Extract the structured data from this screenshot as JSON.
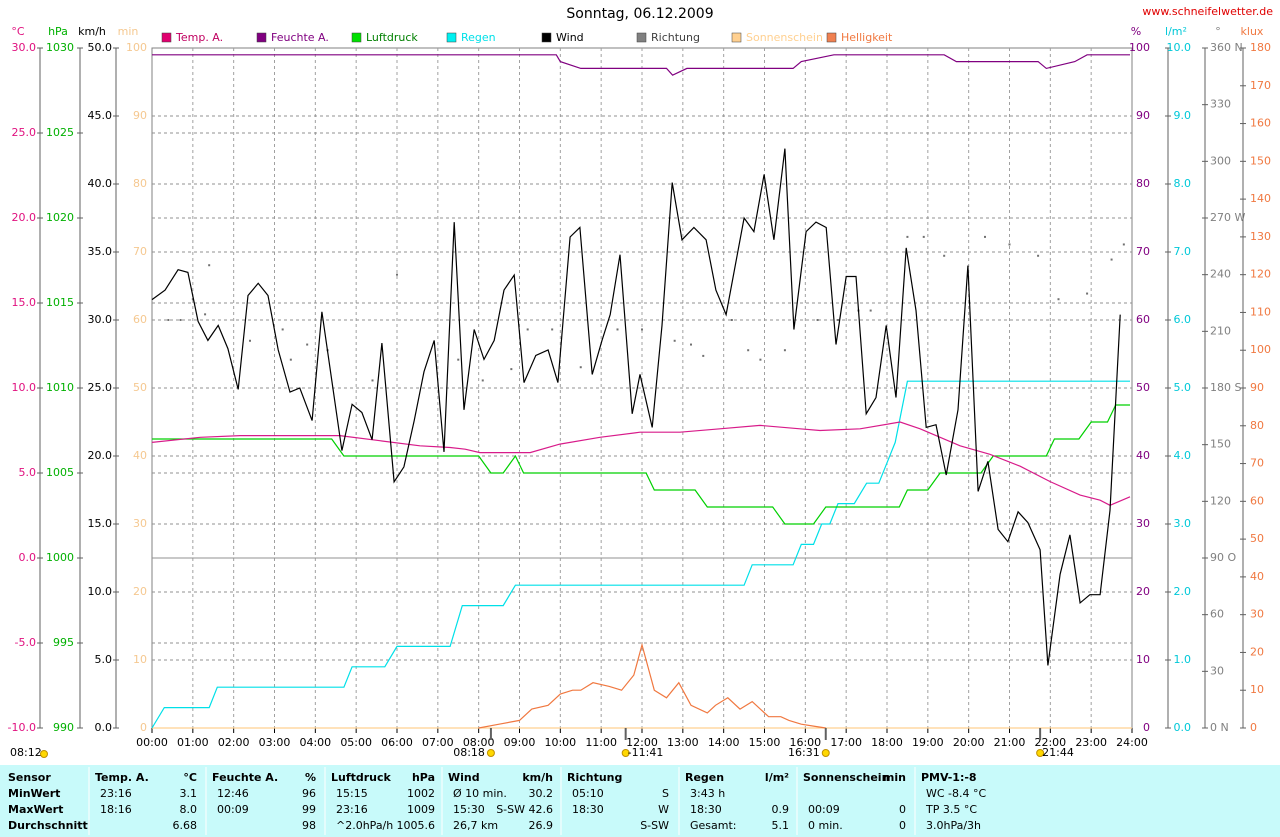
{
  "chart_data": {
    "type": "line",
    "title": "Sonntag, 06.12.2009",
    "source": "www.schneifelwetter.de",
    "xlim": [
      0,
      24
    ],
    "xticks": [
      {
        "value": 0,
        "label": "00:00"
      },
      {
        "value": 1,
        "label": "01:00"
      },
      {
        "value": 2,
        "label": "02:00"
      },
      {
        "value": 3,
        "label": "03:00"
      },
      {
        "value": 4,
        "label": "04:00"
      },
      {
        "value": 5,
        "label": "05:00"
      },
      {
        "value": 6,
        "label": "06:00"
      },
      {
        "value": 7,
        "label": "07:00"
      },
      {
        "value": 8,
        "label": "08:00"
      },
      {
        "value": 9,
        "label": "09:00"
      },
      {
        "value": 10,
        "label": "10:00"
      },
      {
        "value": 11,
        "label": "11:00"
      },
      {
        "value": 12,
        "label": "12:00"
      },
      {
        "value": 13,
        "label": "13:00"
      },
      {
        "value": 14,
        "label": "14:00"
      },
      {
        "value": 15,
        "label": "15:00"
      },
      {
        "value": 16,
        "label": "16:00"
      },
      {
        "value": 17,
        "label": "17:00"
      },
      {
        "value": 18,
        "label": "18:00"
      },
      {
        "value": 19,
        "label": "19:00"
      },
      {
        "value": 20,
        "label": "20:00"
      },
      {
        "value": 21,
        "label": "21:00"
      },
      {
        "value": 22,
        "label": "22:00"
      },
      {
        "value": 23,
        "label": "23:00"
      },
      {
        "value": 24,
        "label": "24:00"
      }
    ],
    "grid": true,
    "axes": {
      "temp": {
        "unit": "°C",
        "color": "#e0107f",
        "lim": [
          -10,
          30
        ],
        "grid": true,
        "zero_line": true,
        "ticks": [
          {
            "value": -10,
            "label": "-10.0"
          },
          {
            "value": -5,
            "label": "-5.0"
          },
          {
            "value": 0,
            "label": "0.0"
          },
          {
            "value": 5,
            "label": "5.0"
          },
          {
            "value": 10,
            "label": "10.0"
          },
          {
            "value": 15,
            "label": "15.0"
          },
          {
            "value": 20,
            "label": "20.0"
          },
          {
            "value": 25,
            "label": "25.0"
          },
          {
            "value": 30,
            "label": "30.0"
          }
        ]
      },
      "pressure": {
        "unit": "hPa",
        "color": "#00b000",
        "lim": [
          990,
          1030
        ],
        "ticks": [
          990,
          995,
          1000,
          1005,
          1010,
          1015,
          1020,
          1025,
          1030
        ]
      },
      "wind": {
        "unit": "km/h",
        "color": "#000000",
        "lim": [
          0,
          50
        ],
        "grid": true,
        "ticks": [
          {
            "value": 0,
            "label": "0.0"
          },
          {
            "value": 5,
            "label": "5.0"
          },
          {
            "value": 10,
            "label": "10.0"
          },
          {
            "value": 15,
            "label": "15.0"
          },
          {
            "value": 20,
            "label": "20.0"
          },
          {
            "value": 25,
            "label": "25.0"
          },
          {
            "value": 30,
            "label": "30.0"
          },
          {
            "value": 35,
            "label": "35.0"
          },
          {
            "value": 40,
            "label": "40.0"
          },
          {
            "value": 45,
            "label": "45.0"
          },
          {
            "value": 50,
            "label": "50.0"
          }
        ]
      },
      "sun": {
        "unit": "min",
        "color": "#f5c890",
        "lim": [
          0,
          100
        ],
        "ticks": [
          0,
          10,
          20,
          30,
          40,
          50,
          60,
          70,
          80,
          90,
          100
        ]
      },
      "humidity": {
        "unit": "%",
        "color": "#800080",
        "lim": [
          0,
          100
        ],
        "ticks": [
          0,
          10,
          20,
          30,
          40,
          50,
          60,
          70,
          80,
          90,
          100
        ]
      },
      "rain": {
        "unit": "l/m²",
        "color": "#00c8d8",
        "lim": [
          0,
          10
        ],
        "ticks": [
          {
            "value": 0,
            "label": "0.0"
          },
          {
            "value": 1,
            "label": "1.0"
          },
          {
            "value": 2,
            "label": "2.0"
          },
          {
            "value": 3,
            "label": "3.0"
          },
          {
            "value": 4,
            "label": "4.0"
          },
          {
            "value": 5,
            "label": "5.0"
          },
          {
            "value": 6,
            "label": "6.0"
          },
          {
            "value": 7,
            "label": "7.0"
          },
          {
            "value": 8,
            "label": "8.0"
          },
          {
            "value": 9,
            "label": "9.0"
          },
          {
            "value": 10,
            "label": "10.0"
          }
        ]
      },
      "direction": {
        "unit": "°",
        "color": "#808080",
        "lim": [
          0,
          360
        ],
        "ticks": [
          {
            "value": 0,
            "label": "0 N"
          },
          30,
          60,
          {
            "value": 90,
            "label": "90 O"
          },
          120,
          150,
          {
            "value": 180,
            "label": "180 S"
          },
          210,
          240,
          {
            "value": 270,
            "label": "270 W"
          },
          300,
          330,
          {
            "value": 360,
            "label": "360 N"
          }
        ]
      },
      "klux": {
        "unit": "klux",
        "color": "#f07840",
        "lim": [
          0,
          180
        ],
        "ticks": [
          0,
          10,
          20,
          30,
          40,
          50,
          60,
          70,
          80,
          90,
          100,
          110,
          120,
          130,
          140,
          150,
          160,
          170,
          180
        ]
      }
    },
    "series": [
      {
        "name": "Temp. A.",
        "color": "#d81b8a",
        "legend_color": "#e0006f",
        "axis": "temp",
        "kind": "line",
        "x": [
          0,
          1.18,
          2.16,
          4.11,
          4.6,
          5.58,
          6.56,
          7.3,
          7.67,
          8.03,
          8.52,
          9.26,
          9.99,
          10.97,
          11.95,
          12.93,
          13.91,
          14.89,
          15.87,
          16.36,
          17.34,
          18.32,
          18.81,
          19.79,
          20.52,
          21.26,
          21.99,
          22.73,
          23.22,
          23.46,
          23.95
        ],
        "values": [
          6.8,
          7.1,
          7.2,
          7.2,
          7.2,
          6.9,
          6.6,
          6.5,
          6.4,
          6.2,
          6.2,
          6.2,
          6.7,
          7.1,
          7.4,
          7.4,
          7.6,
          7.8,
          7.6,
          7.5,
          7.6,
          8.0,
          7.6,
          6.6,
          6.1,
          5.4,
          4.5,
          3.7,
          3.4,
          3.1,
          3.6
        ]
      },
      {
        "name": "Feuchte A.",
        "color": "#800080",
        "legend_color": "#800080",
        "axis": "humidity",
        "kind": "line",
        "x": [
          0,
          9.9,
          10.0,
          10.5,
          12.6,
          12.75,
          13.1,
          15.7,
          15.9,
          16.7,
          19.4,
          19.7,
          21.7,
          21.9,
          22.6,
          22.9,
          23.95
        ],
        "values": [
          99,
          99,
          98,
          97,
          97,
          96,
          97,
          97,
          98,
          99,
          99,
          98,
          98,
          97,
          98,
          99,
          99
        ]
      },
      {
        "name": "Luftdruck",
        "color": "#00d000",
        "legend_color": "#00e000",
        "axis": "pressure",
        "kind": "line",
        "x": [
          0,
          4.4,
          4.7,
          8.0,
          8.3,
          8.6,
          8.9,
          9.1,
          12.1,
          12.3,
          13.3,
          13.6,
          15.2,
          15.5,
          16.2,
          16.5,
          18.3,
          18.5,
          19.0,
          19.3,
          20.3,
          20.6,
          21.9,
          22.1,
          22.7,
          23.0,
          23.4,
          23.6,
          23.95
        ],
        "values": [
          1007,
          1007,
          1006,
          1006,
          1005,
          1005,
          1006,
          1005,
          1005,
          1004,
          1004,
          1003,
          1003,
          1002,
          1002,
          1003,
          1003,
          1004,
          1004,
          1005,
          1005,
          1006,
          1006,
          1007,
          1007,
          1008,
          1008,
          1009,
          1009
        ]
      },
      {
        "name": "Regen",
        "color": "#00e0e8",
        "legend_color": "#00f0f0",
        "axis": "rain",
        "kind": "line",
        "x": [
          0,
          0.3,
          1.4,
          1.6,
          4.7,
          4.9,
          5.7,
          6.0,
          7.3,
          7.6,
          8.6,
          8.9,
          14.5,
          14.7,
          15.7,
          15.9,
          16.2,
          16.4,
          16.6,
          16.8,
          17.2,
          17.5,
          17.8,
          18.0,
          18.2,
          18.5,
          23.95
        ],
        "values": [
          0,
          0.3,
          0.3,
          0.6,
          0.6,
          0.9,
          0.9,
          1.2,
          1.2,
          1.8,
          1.8,
          2.1,
          2.1,
          2.4,
          2.4,
          2.7,
          2.7,
          3.0,
          3.0,
          3.3,
          3.3,
          3.6,
          3.6,
          3.9,
          4.2,
          5.1,
          5.1
        ]
      },
      {
        "name": "Wind",
        "color": "#000000",
        "legend_color": "#000000",
        "axis": "wind",
        "kind": "line",
        "x": [
          0,
          0.32,
          0.64,
          0.88,
          1.13,
          1.37,
          1.62,
          1.86,
          2.11,
          2.35,
          2.6,
          2.84,
          3.09,
          3.38,
          3.62,
          3.92,
          4.16,
          4.65,
          4.9,
          5.14,
          5.39,
          5.63,
          5.93,
          6.17,
          6.42,
          6.66,
          6.91,
          7.15,
          7.4,
          7.64,
          7.89,
          8.13,
          8.38,
          8.62,
          8.87,
          9.11,
          9.4,
          9.7,
          9.94,
          10.24,
          10.48,
          10.78,
          11.02,
          11.22,
          11.46,
          11.76,
          11.95,
          12.25,
          12.49,
          12.74,
          12.98,
          13.27,
          13.57,
          13.81,
          14.06,
          14.5,
          14.74,
          14.99,
          15.23,
          15.5,
          15.72,
          16.02,
          16.26,
          16.51,
          16.75,
          17,
          17.24,
          17.49,
          17.73,
          17.98,
          18.22,
          18.47,
          18.71,
          18.96,
          19.2,
          19.45,
          19.74,
          19.98,
          20.23,
          20.47,
          20.72,
          20.96,
          21.21,
          21.45,
          21.75,
          21.94,
          22.24,
          22.48,
          22.73,
          22.97,
          23.22,
          23.46,
          23.71
        ],
        "values": [
          31.5,
          32.2,
          33.7,
          33.5,
          29.9,
          28.5,
          29.6,
          27.9,
          24.9,
          31.8,
          32.7,
          31.8,
          27.8,
          24.7,
          25.0,
          22.6,
          30.6,
          20.4,
          23.8,
          23.2,
          21.2,
          28.3,
          18.1,
          19.2,
          22.6,
          26.2,
          28.5,
          20.3,
          37.2,
          23.4,
          29.3,
          27.1,
          28.5,
          32.2,
          33.3,
          25.4,
          27.4,
          27.8,
          25.4,
          36.1,
          36.8,
          26.0,
          28.5,
          30.4,
          34.8,
          23.1,
          26.0,
          22.1,
          29.6,
          40.1,
          35.9,
          36.8,
          35.9,
          32.2,
          30.4,
          37.5,
          36.5,
          40.7,
          35.9,
          42.6,
          29.3,
          36.5,
          37.2,
          36.8,
          28.2,
          33.2,
          33.2,
          23.1,
          24.3,
          29.6,
          24.3,
          35.3,
          30.7,
          22.1,
          22.3,
          18.6,
          23.4,
          34.0,
          17.4,
          19.6,
          14.6,
          13.7,
          15.9,
          15.1,
          13.1,
          4.6,
          11.3,
          14.2,
          9.2,
          9.8,
          9.8,
          16.0,
          30.4
        ]
      },
      {
        "name": "Richtung",
        "color": "#707070",
        "legend_color": "#808080",
        "axis": "direction",
        "kind": "dots",
        "x": [
          0.4,
          0.7,
          1.0,
          1.3,
          1.4,
          2.4,
          3.2,
          3.4,
          3.8,
          4.3,
          5.4,
          6.0,
          7.5,
          8.1,
          8.8,
          9.2,
          9.8,
          10.5,
          11.4,
          12.0,
          12.8,
          13.2,
          13.5,
          14.2,
          14.6,
          14.9,
          15.5,
          16.3,
          16.8,
          17.3,
          17.6,
          18.5,
          18.9,
          19.4,
          20.4,
          21.0,
          21.7,
          22.2,
          22.9,
          23.5,
          23.8
        ],
        "values": [
          216,
          216,
          227,
          219,
          245,
          205,
          211,
          195,
          203,
          200,
          184,
          240,
          195,
          184,
          190,
          211,
          211,
          191,
          211,
          211,
          205,
          203,
          197,
          216,
          200,
          195,
          200,
          216,
          216,
          221,
          221,
          260,
          260,
          250,
          260,
          256,
          250,
          227,
          230,
          248,
          256
        ]
      },
      {
        "name": "Sonnenschein",
        "color": "#ffd090",
        "legend_color": "#ffd090",
        "axis": "sun",
        "kind": "line",
        "x": [
          0,
          24
        ],
        "values": [
          0,
          0
        ]
      },
      {
        "name": "Helligkeit",
        "color": "#f07840",
        "legend_color": "#f08050",
        "axis": "klux",
        "kind": "line",
        "x": [
          8.0,
          8.5,
          9.0,
          9.3,
          9.7,
          10.0,
          10.3,
          10.5,
          10.8,
          11.2,
          11.5,
          11.8,
          12.0,
          12.3,
          12.6,
          12.9,
          13.2,
          13.6,
          13.8,
          14.1,
          14.4,
          14.7,
          15.1,
          15.4,
          15.6,
          15.9,
          16.2,
          16.5
        ],
        "values": [
          0,
          1,
          2,
          5,
          6,
          9,
          10,
          10,
          12,
          11,
          10,
          14,
          22,
          10,
          8,
          12,
          6,
          4,
          6,
          8,
          5,
          7,
          3,
          3,
          2,
          1,
          0.5,
          0
        ]
      }
    ],
    "events": [
      {
        "label": "08:18",
        "x": 8.3
      },
      {
        "label": "-11:41",
        "x": 11.6
      },
      {
        "label": "16:31",
        "x": 16.5
      },
      {
        "label": "21:44",
        "x": 21.75
      }
    ],
    "corner_note": "08:12"
  },
  "stats_table": {
    "row_labels": [
      "Sensor",
      "MinWert",
      "MaxWert",
      "Durchschnitt"
    ],
    "groups": [
      {
        "name": "Temp. A.",
        "unit": "°C",
        "min": {
          "time": "23:16",
          "value": "3.1"
        },
        "max": {
          "time": "18:16",
          "value": "8.0"
        },
        "avg": {
          "value": "6.68"
        }
      },
      {
        "name": "Feuchte A.",
        "unit": "%",
        "min": {
          "time": "12:46",
          "value": "96"
        },
        "max": {
          "time": "00:09",
          "value": "99"
        },
        "avg": {
          "value": "98"
        }
      },
      {
        "name": "Luftdruck",
        "unit": "hPa",
        "min": {
          "time": "15:15",
          "value": "1002"
        },
        "max": {
          "time": "23:16",
          "value": "1009"
        },
        "avg": {
          "time": "^2.0hPa/h",
          "value": "1005.6"
        }
      },
      {
        "name": "Wind",
        "unit": "km/h",
        "min": {
          "time": "Ø 10 min.",
          "value": "30.2"
        },
        "max": {
          "time": "15:30",
          "value": "S-SW 42.6"
        },
        "avg": {
          "time": "26,7 km",
          "value": "26.9"
        }
      },
      {
        "name": "Richtung",
        "min": {
          "time": "05:10",
          "value": "S"
        },
        "max": {
          "time": "18:30",
          "value": "W"
        },
        "avg": {
          "value": "S-SW"
        }
      },
      {
        "name": "Regen",
        "unit": "l/m²",
        "min": {
          "time": "3:43 h"
        },
        "max": {
          "time": "18:30",
          "value": "0.9"
        },
        "avg": {
          "time": "Gesamt:",
          "value": "5.1"
        }
      },
      {
        "name": "Sonnenschein",
        "unit": "min",
        "max": {
          "time": "00:09",
          "value": "0"
        },
        "avg": {
          "time": "0 min.",
          "value": "0"
        }
      },
      {
        "name": "PMV-1:-8",
        "min": {
          "time": "WC -8.4 °C"
        },
        "max": {
          "time": "TP 3.5 °C"
        },
        "avg": {
          "time": "3.0hPa/3h"
        }
      }
    ]
  }
}
